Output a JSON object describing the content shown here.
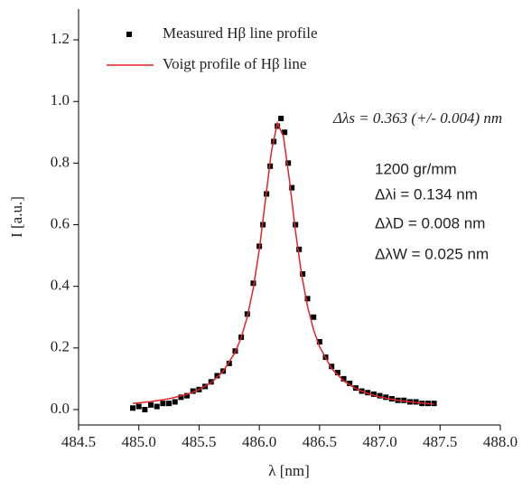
{
  "chart_data": {
    "type": "scatter",
    "xlabel": "λ [nm]",
    "ylabel": "I [a.u.]",
    "xlim": [
      484.5,
      488.0
    ],
    "xticks": [
      484.5,
      {
        "value": 485,
        "label": "485.0"
      },
      485.5,
      {
        "value": 486,
        "label": "486.0"
      },
      486.5,
      {
        "value": 487,
        "label": "487.0"
      },
      487.5,
      {
        "value": 488,
        "label": "488.0"
      }
    ],
    "ylim": [
      -0.05,
      1.3
    ],
    "yticks": [
      {
        "value": 0,
        "label": "0.0"
      },
      0.2,
      0.4,
      0.6,
      0.8,
      {
        "value": 1,
        "label": "1.0"
      },
      1.2
    ],
    "grid": false,
    "legend": "upper left",
    "series": [
      {
        "name": "Measured Hβ line profile",
        "type": "scatter",
        "color": "#000000",
        "x": [
          484.95,
          485.0,
          485.05,
          485.1,
          485.15,
          485.2,
          485.25,
          485.3,
          485.35,
          485.4,
          485.45,
          485.5,
          485.55,
          485.6,
          485.65,
          485.7,
          485.75,
          485.8,
          485.85,
          485.9,
          485.95,
          486.0,
          486.03,
          486.06,
          486.09,
          486.12,
          486.15,
          486.18,
          486.21,
          486.24,
          486.27,
          486.3,
          486.33,
          486.36,
          486.4,
          486.45,
          486.5,
          486.55,
          486.6,
          486.65,
          486.7,
          486.75,
          486.8,
          486.85,
          486.9,
          486.95,
          487.0,
          487.05,
          487.1,
          487.15,
          487.2,
          487.25,
          487.3,
          487.35,
          487.4,
          487.45
        ],
        "values": [
          0.005,
          0.01,
          0.0,
          0.015,
          0.01,
          0.02,
          0.02,
          0.025,
          0.04,
          0.045,
          0.06,
          0.065,
          0.075,
          0.09,
          0.11,
          0.125,
          0.15,
          0.19,
          0.235,
          0.31,
          0.41,
          0.53,
          0.6,
          0.7,
          0.79,
          0.87,
          0.92,
          0.945,
          0.9,
          0.8,
          0.72,
          0.6,
          0.52,
          0.44,
          0.36,
          0.3,
          0.22,
          0.17,
          0.14,
          0.12,
          0.1,
          0.085,
          0.07,
          0.06,
          0.055,
          0.05,
          0.045,
          0.04,
          0.035,
          0.03,
          0.03,
          0.025,
          0.025,
          0.02,
          0.02,
          0.02
        ]
      },
      {
        "name": "Voigt profile of Hβ line",
        "type": "line",
        "color": "#e0242a",
        "x": [
          484.95,
          485.1,
          485.25,
          485.4,
          485.5,
          485.6,
          485.7,
          485.8,
          485.85,
          485.9,
          485.95,
          486.0,
          486.05,
          486.1,
          486.15,
          486.2,
          486.25,
          486.3,
          486.35,
          486.4,
          486.45,
          486.5,
          486.6,
          486.7,
          486.8,
          486.9,
          487.0,
          487.15,
          487.3,
          487.45
        ],
        "values": [
          0.02,
          0.026,
          0.035,
          0.049,
          0.065,
          0.087,
          0.124,
          0.186,
          0.234,
          0.301,
          0.394,
          0.52,
          0.677,
          0.837,
          0.93,
          0.887,
          0.744,
          0.579,
          0.44,
          0.335,
          0.259,
          0.204,
          0.133,
          0.093,
          0.068,
          0.052,
          0.041,
          0.03,
          0.023,
          0.018
        ]
      }
    ],
    "annotations": [
      "Δλs = 0.363 (+/- 0.004) nm",
      "1200 gr/mm",
      "Δλi = 0.134 nm",
      "ΔλD = 0.008 nm",
      "ΔλW = 0.025 nm"
    ]
  }
}
